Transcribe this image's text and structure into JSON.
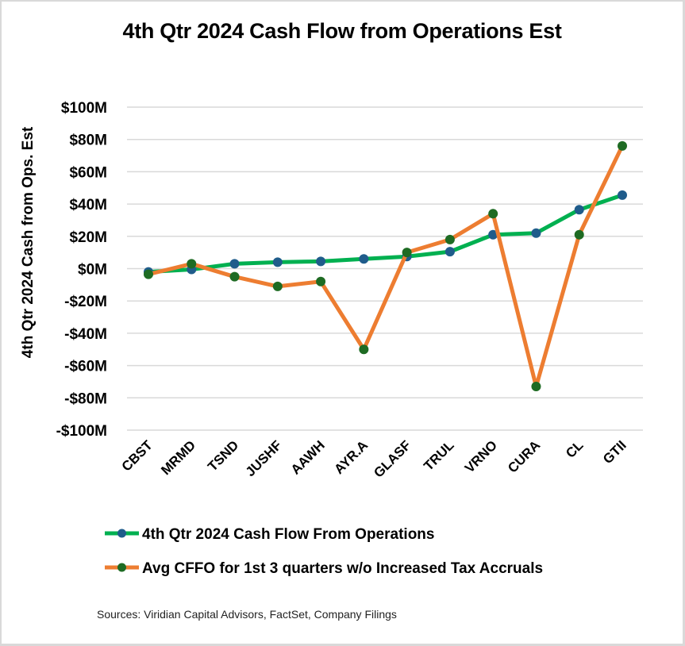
{
  "chart_data": {
    "type": "line",
    "title": "4th Qtr 2024 Cash Flow from Operations Est",
    "xlabel": "",
    "ylabel": "4th Qtr 2024 Cash from Ops. Est",
    "ylim": [
      -100,
      100
    ],
    "yticks": [
      100,
      80,
      60,
      40,
      20,
      0,
      -20,
      -40,
      -60,
      -80,
      -100
    ],
    "ytick_labels": [
      "$100M",
      "$80M",
      "$60M",
      "$40M",
      "$20M",
      "$0M",
      "-$20M",
      "-$40M",
      "-$60M",
      "-$80M",
      "-$100M"
    ],
    "grid": true,
    "legend_position": "bottom",
    "categories": [
      "CBST",
      "MRMD",
      "TSND",
      "JUSHF",
      "AAWH",
      "AYR.A",
      "GLASF",
      "TRUL",
      "VRNO",
      "CURA",
      "CL",
      "GTII"
    ],
    "series": [
      {
        "name": "4th Qtr 2024 Cash Flow From Operations",
        "line_color": "#00b050",
        "marker_color": "#1f5c8b",
        "values": [
          -2,
          -0.5,
          3,
          4,
          4.5,
          6,
          7.5,
          10.5,
          21,
          22,
          36.5,
          45.5
        ]
      },
      {
        "name": "Avg CFFO for 1st 3 quarters w/o Increased Tax Accruals",
        "line_color": "#ed7d31",
        "marker_color": "#1e6b23",
        "values": [
          -3.5,
          3,
          -5,
          -11,
          -8,
          -50,
          10,
          18,
          34,
          -73,
          21,
          76
        ]
      }
    ],
    "units": "millions USD"
  },
  "sources": "Sources: Viridian Capital Advisors, FactSet, Company Filings",
  "colors": {
    "gridline": "#d9d9d9",
    "background": "#ffffff"
  }
}
